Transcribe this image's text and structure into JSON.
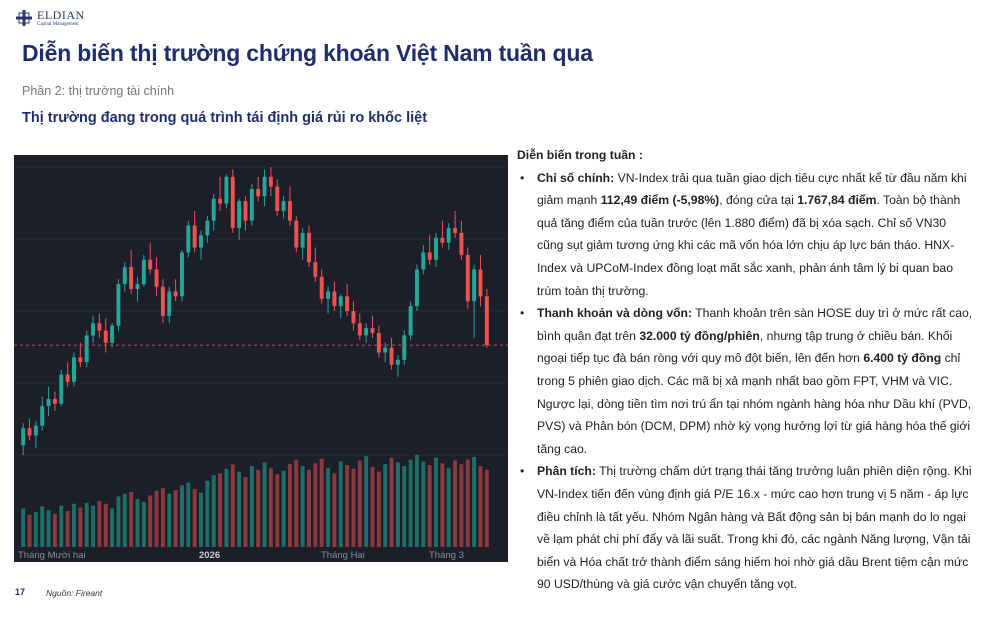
{
  "logo": {
    "name": "ELDIAN",
    "tagline": "Capital Management",
    "icon": "eldian-cross-logo"
  },
  "title": "Diễn biến thị trường chứng khoán Việt Nam tuần qua",
  "subtitle": "Phần 2: thị trường tài chính",
  "heading": "Thị trường đang trong quá trình tái định giá rủi ro khốc liệt",
  "footer": {
    "page": "17",
    "source": "Nguồn: Fireant"
  },
  "chart_data": {
    "type": "candlestick",
    "x_ticks": [
      "Tháng Mười hai",
      "2026",
      "Tháng Hai",
      "Tháng 3"
    ],
    "colors": {
      "up": "#26a69a",
      "down": "#ef5350",
      "background": "#1c1f2a"
    },
    "price_line": "dashed",
    "candles": [
      [
        84,
        93,
        80,
        91
      ],
      [
        91,
        95,
        86,
        88
      ],
      [
        88,
        94,
        83,
        92
      ],
      [
        92,
        104,
        90,
        100
      ],
      [
        100,
        108,
        96,
        103
      ],
      [
        103,
        106,
        98,
        101
      ],
      [
        101,
        115,
        100,
        113
      ],
      [
        113,
        118,
        108,
        110
      ],
      [
        110,
        122,
        108,
        120
      ],
      [
        120,
        126,
        116,
        118
      ],
      [
        118,
        131,
        116,
        129
      ],
      [
        129,
        137,
        126,
        134
      ],
      [
        134,
        138,
        128,
        131
      ],
      [
        131,
        136,
        122,
        126
      ],
      [
        126,
        134,
        124,
        133
      ],
      [
        133,
        152,
        131,
        150
      ],
      [
        150,
        159,
        147,
        157
      ],
      [
        157,
        164,
        146,
        148
      ],
      [
        148,
        153,
        143,
        150
      ],
      [
        150,
        162,
        149,
        160
      ],
      [
        160,
        167,
        154,
        156
      ],
      [
        156,
        161,
        145,
        149
      ],
      [
        149,
        152,
        134,
        137
      ],
      [
        137,
        149,
        134,
        147
      ],
      [
        147,
        152,
        143,
        145
      ],
      [
        145,
        164,
        143,
        163
      ],
      [
        163,
        176,
        161,
        174
      ],
      [
        174,
        180,
        163,
        165
      ],
      [
        165,
        172,
        160,
        170
      ],
      [
        170,
        178,
        167,
        176
      ],
      [
        176,
        187,
        172,
        185
      ],
      [
        185,
        194,
        180,
        183
      ],
      [
        183,
        195,
        181,
        194
      ],
      [
        194,
        197,
        171,
        173
      ],
      [
        173,
        185,
        168,
        184
      ],
      [
        184,
        186,
        172,
        176
      ],
      [
        176,
        191,
        174,
        189
      ],
      [
        189,
        194,
        184,
        186
      ],
      [
        186,
        197,
        182,
        194
      ],
      [
        194,
        198,
        186,
        190
      ],
      [
        190,
        193,
        178,
        180
      ],
      [
        180,
        186,
        177,
        184
      ],
      [
        184,
        190,
        174,
        176
      ],
      [
        176,
        178,
        163,
        165
      ],
      [
        165,
        173,
        160,
        171
      ],
      [
        171,
        174,
        157,
        159
      ],
      [
        159,
        165,
        151,
        153
      ],
      [
        153,
        156,
        142,
        144
      ],
      [
        144,
        149,
        138,
        147
      ],
      [
        147,
        151,
        139,
        141
      ],
      [
        141,
        146,
        136,
        145
      ],
      [
        145,
        150,
        137,
        139
      ],
      [
        139,
        143,
        131,
        134
      ],
      [
        134,
        138,
        127,
        129
      ],
      [
        129,
        134,
        126,
        132
      ],
      [
        132,
        137,
        128,
        130
      ],
      [
        130,
        133,
        120,
        122
      ],
      [
        122,
        126,
        118,
        124
      ],
      [
        124,
        128,
        115,
        117
      ],
      [
        117,
        121,
        112,
        119
      ],
      [
        119,
        131,
        117,
        129
      ],
      [
        129,
        143,
        127,
        141
      ],
      [
        141,
        158,
        139,
        156
      ],
      [
        156,
        166,
        154,
        163
      ],
      [
        163,
        170,
        158,
        160
      ],
      [
        160,
        171,
        157,
        169
      ],
      [
        169,
        176,
        165,
        167
      ],
      [
        167,
        175,
        164,
        173
      ],
      [
        173,
        180,
        169,
        171
      ],
      [
        171,
        176,
        160,
        162
      ],
      [
        162,
        165,
        140,
        143
      ],
      [
        143,
        158,
        128,
        156
      ],
      [
        156,
        162,
        141,
        145
      ],
      [
        145,
        148,
        124,
        125
      ]
    ],
    "volumes": [
      42,
      35,
      38,
      44,
      40,
      36,
      45,
      39,
      47,
      43,
      48,
      45,
      50,
      47,
      42,
      55,
      58,
      60,
      52,
      49,
      56,
      61,
      64,
      58,
      62,
      67,
      70,
      63,
      59,
      72,
      78,
      80,
      85,
      90,
      82,
      76,
      88,
      84,
      92,
      86,
      79,
      83,
      90,
      95,
      88,
      84,
      91,
      96,
      86,
      80,
      93,
      89,
      85,
      94,
      99,
      87,
      82,
      90,
      97,
      92,
      88,
      95,
      100,
      93,
      89,
      97,
      91,
      86,
      94,
      90,
      95,
      98,
      88,
      84
    ]
  },
  "panel": {
    "title": "Diễn biến trong tuần :",
    "items": [
      {
        "parts": [
          {
            "b": true,
            "t": "Chỉ số chính:"
          },
          {
            "t": " VN-Index trải qua tuần giao dịch tiêu cực nhất kể từ đầu năm khi giảm mạnh "
          },
          {
            "b": true,
            "t": "112,49 điểm (-5,98%)"
          },
          {
            "t": ", đóng cửa tại "
          },
          {
            "b": true,
            "t": "1.767,84 điểm"
          },
          {
            "t": ". Toàn bộ thành quả tăng điểm của tuần trước (lên 1.880 điểm) đã bị xóa sạch. Chỉ số VN30 cũng sụt giảm tương ứng khi các mã vốn hóa lớn chịu áp lực bán tháo. HNX-Index và UPCoM-Index đồng loạt mất sắc xanh, phản ánh tâm lý bi quan bao trùm toàn thị trường."
          }
        ]
      },
      {
        "parts": [
          {
            "b": true,
            "t": "Thanh khoản và dòng vốn:"
          },
          {
            "t": " Thanh khoản trên sàn HOSE duy trì ở mức rất cao, bình quân đạt trên "
          },
          {
            "b": true,
            "t": "32.000 tỷ đồng/phiên"
          },
          {
            "t": ", nhưng tập trung ở chiều bán. Khối ngoại tiếp tục đà bán ròng với quy mô đột biến, lên đến hơn "
          },
          {
            "b": true,
            "t": "6.400 tỷ đồng"
          },
          {
            "t": " chỉ trong 5 phiên giao dịch. Các mã bị xả mạnh nhất bao gồm FPT, VHM và VIC. Ngược lại, dòng tiền tìm nơi trú ẩn tại nhóm ngành hàng hóa như Dầu khí (PVD, PVS) và Phân bón (DCM, DPM) nhờ kỳ vọng hưởng lợi từ giá hàng hóa thế giới tăng cao."
          }
        ]
      },
      {
        "parts": [
          {
            "b": true,
            "t": "Phân tích:"
          },
          {
            "t": " Thị trường chấm dứt trạng thái tăng trưởng luân phiên diện rộng. Khi VN-Index tiến đến vùng định giá P/E 16.x - mức cao hơn trung vị 5 năm - áp lực điều chỉnh là tất yếu. Nhóm Ngân hàng và Bất động sản bị bán mạnh do lo ngại về lạm phát chi phí đẩy và lãi suất. Trong khi đó, các ngành Năng lượng, Vận tải biển và Hóa chất trở thành điểm sáng hiếm hoi nhờ giá dầu Brent tiệm cận mức 90 USD/thùng và giá cước vận chuyển tăng vọt."
          }
        ]
      }
    ]
  }
}
